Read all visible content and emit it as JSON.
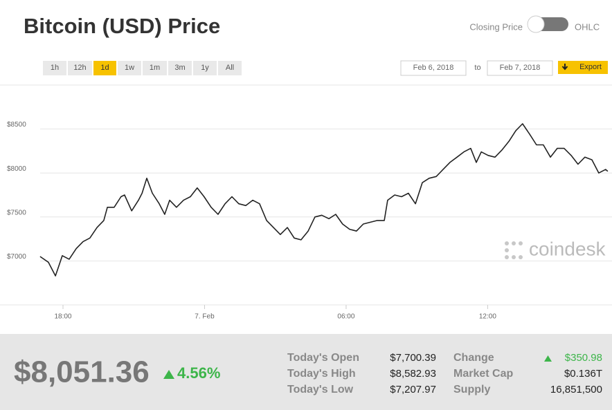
{
  "header": {
    "title": "Bitcoin (USD) Price",
    "toggle_left": "Closing Price",
    "toggle_right": "OHLC"
  },
  "controls": {
    "ranges": [
      "1h",
      "12h",
      "1d",
      "1w",
      "1m",
      "3m",
      "1y",
      "All"
    ],
    "active_range": "1d",
    "date_from": "Feb 6, 2018",
    "date_to_label": "to",
    "date_to": "Feb 7, 2018",
    "export": "Export"
  },
  "watermark": "coindesk",
  "chart_data": {
    "type": "line",
    "color": "#222222",
    "grid": true,
    "x": [
      17.03,
      17.38,
      17.68,
      17.97,
      18.26,
      18.56,
      18.85,
      19.14,
      19.44,
      19.73,
      19.88,
      20.17,
      20.46,
      20.61,
      20.91,
      21.2,
      21.35,
      21.55,
      21.79,
      22.08,
      22.31,
      22.52,
      22.81,
      23.11,
      23.4,
      23.69,
      23.98,
      24.28,
      24.57,
      24.87,
      25.16,
      25.45,
      25.75,
      26.04,
      26.33,
      26.63,
      26.92,
      27.21,
      27.51,
      27.8,
      28.09,
      28.39,
      28.68,
      28.97,
      29.27,
      29.56,
      29.85,
      30.15,
      30.44,
      30.73,
      31.03,
      31.32,
      31.62,
      31.76,
      32.06,
      32.35,
      32.64,
      32.94,
      33.23,
      33.52,
      33.82,
      34.11,
      34.4,
      34.7,
      34.99,
      35.28,
      35.52,
      35.73,
      36.02,
      36.31,
      36.6,
      36.9,
      37.19,
      37.48,
      37.78,
      38.07,
      38.36,
      38.66,
      38.95,
      39.24,
      39.54,
      39.83,
      40.12,
      40.42,
      40.71,
      41.0,
      41.09
    ],
    "values": [
      7050,
      6985,
      6830,
      7060,
      7020,
      7140,
      7220,
      7260,
      7380,
      7460,
      7610,
      7610,
      7730,
      7750,
      7570,
      7690,
      7770,
      7940,
      7770,
      7650,
      7530,
      7690,
      7610,
      7690,
      7730,
      7830,
      7730,
      7610,
      7530,
      7650,
      7730,
      7650,
      7630,
      7690,
      7650,
      7460,
      7380,
      7300,
      7380,
      7260,
      7240,
      7340,
      7500,
      7520,
      7480,
      7530,
      7420,
      7360,
      7340,
      7420,
      7440,
      7460,
      7460,
      7690,
      7750,
      7730,
      7770,
      7650,
      7890,
      7940,
      7960,
      8040,
      8120,
      8180,
      8240,
      8280,
      8120,
      8240,
      8200,
      8180,
      8260,
      8360,
      8480,
      8560,
      8440,
      8320,
      8320,
      8180,
      8280,
      8280,
      8200,
      8100,
      8180,
      8150,
      8000,
      8040,
      8020
    ],
    "xlim": [
      15.33,
      41.27
    ],
    "xticks": [
      {
        "value": 18,
        "label": "18:00"
      },
      {
        "value": 24,
        "label": "7. Feb"
      },
      {
        "value": 30,
        "label": "06:00"
      },
      {
        "value": 36,
        "label": "12:00"
      }
    ],
    "ylim": [
      6500,
      9000
    ],
    "yticks": [
      {
        "value": 7000,
        "label": "$7000"
      },
      {
        "value": 7500,
        "label": "$7500"
      },
      {
        "value": 8000,
        "label": "$8000"
      },
      {
        "value": 8500,
        "label": "$8500"
      }
    ]
  },
  "summary": {
    "price": "$8,051.36",
    "change_pct": "4.56%",
    "stats": [
      [
        "Today's Open",
        "$7,700.39",
        "Change",
        "$350.98"
      ],
      [
        "Today's High",
        "$8,582.93",
        "Market Cap",
        "$0.136T"
      ],
      [
        "Today's Low",
        "$7,207.97",
        "Supply",
        "16,851,500"
      ]
    ]
  }
}
